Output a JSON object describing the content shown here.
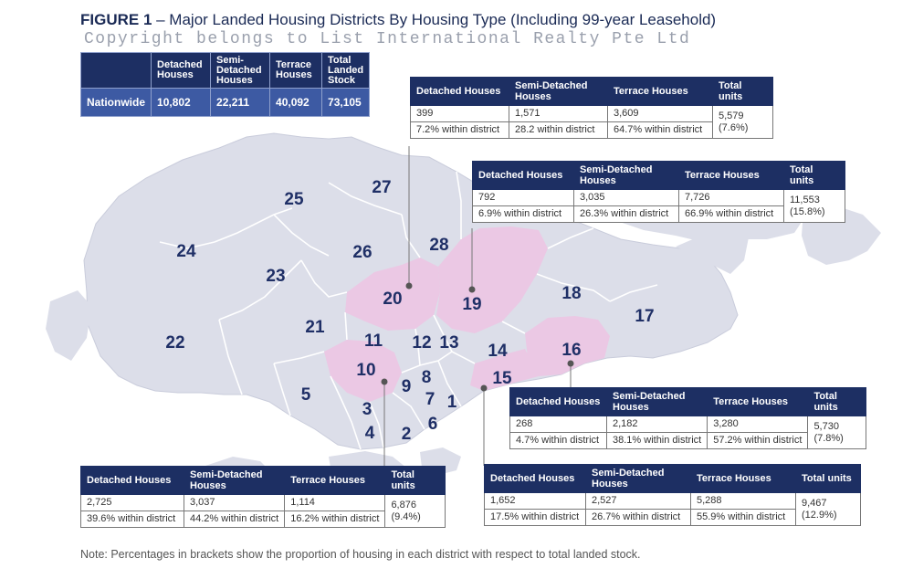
{
  "title": {
    "bold": "FIGURE 1",
    "rest": " – Major Landed Housing Districts By Housing Type (Including 99-year Leasehold)"
  },
  "watermark": "Copyright belongs to List International Realty Pte Ltd",
  "nationwide": {
    "headers": [
      "Detached Houses",
      "Semi-Detached Houses",
      "Terrace Houses",
      "Total Landed Stock"
    ],
    "row_label": "Nationwide",
    "values": [
      "10,802",
      "22,211",
      "40,092",
      "73,105"
    ]
  },
  "columns": [
    "Detached Houses",
    "Semi-Detached Houses",
    "Terrace Houses",
    "Total units"
  ],
  "district_tables": {
    "d20": {
      "counts": [
        "399",
        "1,571",
        "3,609"
      ],
      "pcts": [
        "7.2% within district",
        "28.2 within district",
        "64.7% within district"
      ],
      "total": "5,579 (7.6%)"
    },
    "d19": {
      "counts": [
        "792",
        "3,035",
        "7,726"
      ],
      "pcts": [
        "6.9% within district",
        "26.3% within district",
        "66.9% within district"
      ],
      "total": "11,553 (15.8%)"
    },
    "d16": {
      "counts": [
        "268",
        "2,182",
        "3,280"
      ],
      "pcts": [
        "4.7% within district",
        "38.1% within district",
        "57.2% within district"
      ],
      "total": "5,730 (7.8%)"
    },
    "d15": {
      "counts": [
        "1,652",
        "2,527",
        "5,288"
      ],
      "pcts": [
        "17.5% within district",
        "26.7% within district",
        "55.9% within district"
      ],
      "total": "9,467 (12.9%)"
    },
    "d10": {
      "counts": [
        "2,725",
        "3,037",
        "1,114"
      ],
      "pcts": [
        "39.6% within district",
        "44.2% within district",
        "16.2% within district"
      ],
      "total": "6,876 (9.4%)"
    }
  },
  "map": {
    "land_color": "#dcdee9",
    "highlight_color": "#ebc8e4",
    "border_color": "#ffffff",
    "districts": [
      "1",
      "2",
      "3",
      "4",
      "5",
      "7",
      "8",
      "9",
      "10",
      "11",
      "12",
      "13",
      "14",
      "15",
      "16",
      "17",
      "18",
      "19",
      "20",
      "21",
      "22",
      "23",
      "24",
      "25",
      "26",
      "27",
      "28"
    ],
    "highlighted": [
      "10",
      "15",
      "16",
      "19",
      "20"
    ]
  },
  "note": "Note: Percentages in brackets show the proportion of housing in each district with respect to total landed stock."
}
